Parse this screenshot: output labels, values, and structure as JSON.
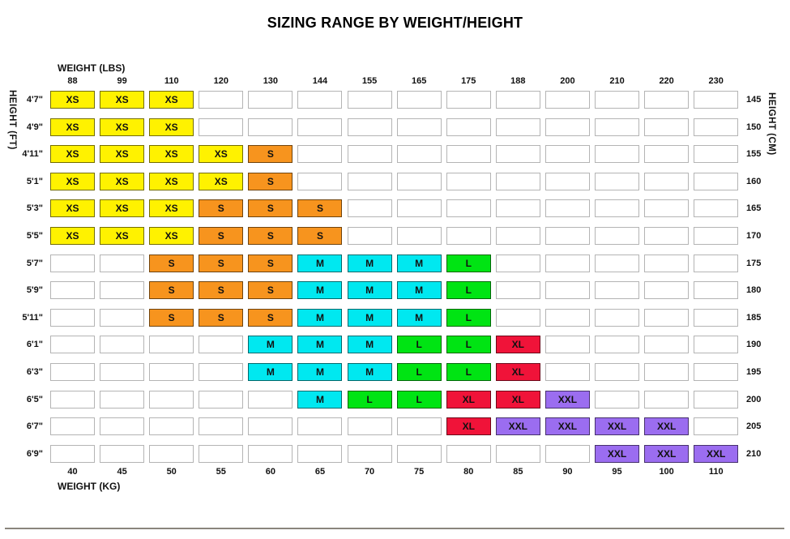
{
  "title": "SIZING RANGE BY WEIGHT/HEIGHT",
  "axis_labels": {
    "top": "WEIGHT (LBS)",
    "bottom": "WEIGHT (KG)",
    "left": "HEIGHT (FT)",
    "right": "HEIGHT (CM)"
  },
  "chart_data": {
    "type": "heatmap",
    "title": "SIZING RANGE BY WEIGHT/HEIGHT",
    "x_top_label": "WEIGHT (LBS)",
    "x_top_ticks": [
      "88",
      "99",
      "110",
      "120",
      "130",
      "144",
      "155",
      "165",
      "175",
      "188",
      "200",
      "210",
      "220",
      "230"
    ],
    "x_bottom_label": "WEIGHT (KG)",
    "x_bottom_ticks": [
      "40",
      "45",
      "50",
      "55",
      "60",
      "65",
      "70",
      "75",
      "80",
      "85",
      "90",
      "95",
      "100",
      "110"
    ],
    "y_left_label": "HEIGHT (FT)",
    "y_left_ticks": [
      "4'7\"",
      "4'9\"",
      "4'11\"",
      "5'1\"",
      "5'3\"",
      "5'5\"",
      "5'7\"",
      "5'9\"",
      "5'11\"",
      "6'1\"",
      "6'3\"",
      "6'5\"",
      "6'7\"",
      "6'9\""
    ],
    "y_right_label": "HEIGHT (CM)",
    "y_right_ticks": [
      "145",
      "150",
      "155",
      "160",
      "165",
      "170",
      "175",
      "180",
      "185",
      "190",
      "195",
      "200",
      "205",
      "210"
    ],
    "matrix": [
      [
        "XS",
        "XS",
        "XS",
        "",
        "",
        "",
        "",
        "",
        "",
        "",
        "",
        "",
        "",
        ""
      ],
      [
        "XS",
        "XS",
        "XS",
        "",
        "",
        "",
        "",
        "",
        "",
        "",
        "",
        "",
        "",
        ""
      ],
      [
        "XS",
        "XS",
        "XS",
        "XS",
        "S",
        "",
        "",
        "",
        "",
        "",
        "",
        "",
        "",
        ""
      ],
      [
        "XS",
        "XS",
        "XS",
        "XS",
        "S",
        "",
        "",
        "",
        "",
        "",
        "",
        "",
        "",
        ""
      ],
      [
        "XS",
        "XS",
        "XS",
        "S",
        "S",
        "S",
        "",
        "",
        "",
        "",
        "",
        "",
        "",
        ""
      ],
      [
        "XS",
        "XS",
        "XS",
        "S",
        "S",
        "S",
        "",
        "",
        "",
        "",
        "",
        "",
        "",
        ""
      ],
      [
        "",
        "",
        "S",
        "S",
        "S",
        "M",
        "M",
        "M",
        "L",
        "",
        "",
        "",
        "",
        ""
      ],
      [
        "",
        "",
        "S",
        "S",
        "S",
        "M",
        "M",
        "M",
        "L",
        "",
        "",
        "",
        "",
        ""
      ],
      [
        "",
        "",
        "S",
        "S",
        "S",
        "M",
        "M",
        "M",
        "L",
        "",
        "",
        "",
        "",
        ""
      ],
      [
        "",
        "",
        "",
        "",
        "M",
        "M",
        "M",
        "L",
        "L",
        "XL",
        "",
        "",
        "",
        ""
      ],
      [
        "",
        "",
        "",
        "",
        "M",
        "M",
        "M",
        "L",
        "L",
        "XL",
        "",
        "",
        "",
        ""
      ],
      [
        "",
        "",
        "",
        "",
        "",
        "M",
        "L",
        "L",
        "XL",
        "XL",
        "XXL",
        "",
        "",
        ""
      ],
      [
        "",
        "",
        "",
        "",
        "",
        "",
        "",
        "",
        "XL",
        "XXL",
        "XXL",
        "XXL",
        "XXL",
        ""
      ],
      [
        "",
        "",
        "",
        "",
        "",
        "",
        "",
        "",
        "",
        "",
        "",
        "XXL",
        "XXL",
        "XXL"
      ]
    ],
    "size_colors": {
      "XS": "#FFF200",
      "S": "#F7941E",
      "M": "#00E8F0",
      "L": "#00E413",
      "XL": "#F01339",
      "XXL": "#9B6DF0"
    },
    "empty_cell_color": "#FFFFFF",
    "divider_color": "#8a857d"
  }
}
